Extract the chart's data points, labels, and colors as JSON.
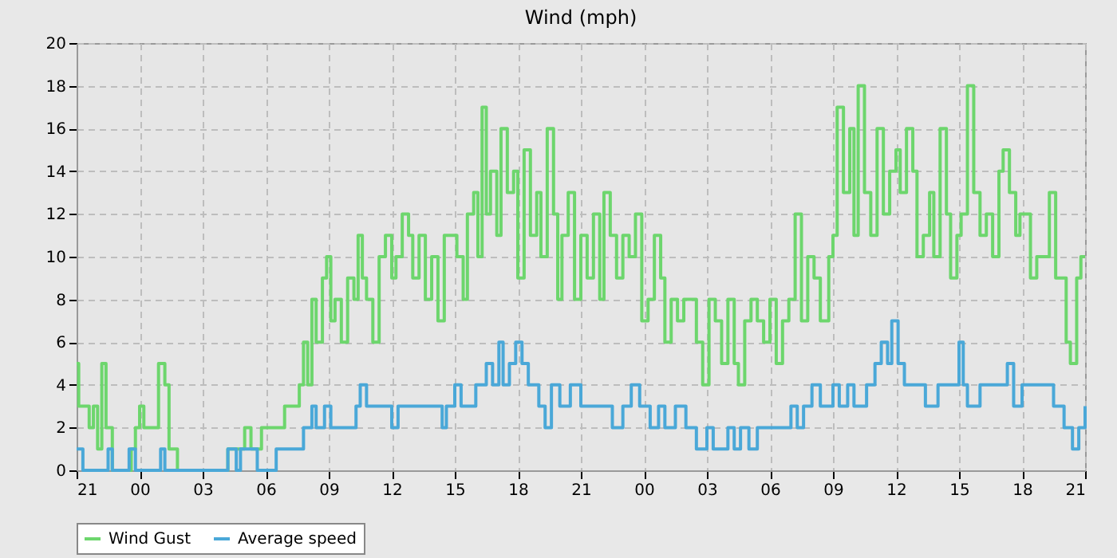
{
  "chart_data": {
    "type": "step",
    "title": "Wind (mph)",
    "legend": "bottom",
    "grid": true,
    "xlim": [
      "--01-01T21:00",
      "--01-03T21:00"
    ],
    "ylim": [
      0,
      20
    ],
    "xticks": [
      {
        "value": "--01-01T21:00",
        "label": "21"
      },
      {
        "value": "--01-02T00:00",
        "label": "00"
      },
      {
        "value": "--01-02T03:00",
        "label": "03"
      },
      {
        "value": "--01-02T06:00",
        "label": "06"
      },
      {
        "value": "--01-02T09:00",
        "label": "09"
      },
      {
        "value": "--01-02T12:00",
        "label": "12"
      },
      {
        "value": "--01-02T15:00",
        "label": "15"
      },
      {
        "value": "--01-02T18:00",
        "label": "18"
      },
      {
        "value": "--01-02T21:00",
        "label": "21"
      },
      {
        "value": "--01-03T00:00",
        "label": "00"
      },
      {
        "value": "--01-03T03:00",
        "label": "03"
      },
      {
        "value": "--01-03T06:00",
        "label": "06"
      },
      {
        "value": "--01-03T09:00",
        "label": "09"
      },
      {
        "value": "--01-03T12:00",
        "label": "12"
      },
      {
        "value": "--01-03T15:00",
        "label": "15"
      },
      {
        "value": "--01-03T18:00",
        "label": "18"
      },
      {
        "value": "--01-03T21:00",
        "label": "21"
      }
    ],
    "yticks": [
      0,
      2,
      4,
      6,
      8,
      10,
      12,
      14,
      16,
      18,
      20
    ],
    "series": [
      {
        "name": "Wind Gust",
        "color": "#6dd66d",
        "x": [
          "--01-01T21:00",
          "--01-01T21:06",
          "--01-01T21:36",
          "--01-01T21:48",
          "--01-01T22:00",
          "--01-01T22:12",
          "--01-01T22:24",
          "--01-01T22:42",
          "--01-01T23:36",
          "--01-01T23:48",
          "--01-02T00:00",
          "--01-02T00:12",
          "--01-02T00:54",
          "--01-02T01:12",
          "--01-02T01:24",
          "--01-02T01:48",
          "--01-02T04:12",
          "--01-02T05:00",
          "--01-02T05:18",
          "--01-02T05:48",
          "--01-02T06:54",
          "--01-02T07:36",
          "--01-02T07:48",
          "--01-02T08:00",
          "--01-02T08:12",
          "--01-02T08:24",
          "--01-02T08:42",
          "--01-02T08:54",
          "--01-02T09:06",
          "--01-02T09:18",
          "--01-02T09:36",
          "--01-02T09:54",
          "--01-02T10:12",
          "--01-02T10:24",
          "--01-02T10:36",
          "--01-02T10:48",
          "--01-02T11:06",
          "--01-02T11:24",
          "--01-02T11:42",
          "--01-02T12:00",
          "--01-02T12:12",
          "--01-02T12:30",
          "--01-02T12:48",
          "--01-02T13:00",
          "--01-02T13:18",
          "--01-02T13:36",
          "--01-02T13:54",
          "--01-02T14:12",
          "--01-02T14:30",
          "--01-02T14:48",
          "--01-02T15:06",
          "--01-02T15:24",
          "--01-02T15:36",
          "--01-02T15:54",
          "--01-02T16:06",
          "--01-02T16:18",
          "--01-02T16:30",
          "--01-02T16:42",
          "--01-02T17:00",
          "--01-02T17:12",
          "--01-02T17:30",
          "--01-02T17:48",
          "--01-02T18:00",
          "--01-02T18:18",
          "--01-02T18:36",
          "--01-02T18:54",
          "--01-02T19:06",
          "--01-02T19:24",
          "--01-02T19:42",
          "--01-02T19:54",
          "--01-02T20:06",
          "--01-02T20:24",
          "--01-02T20:42",
          "--01-02T21:00",
          "--01-02T21:18",
          "--01-02T21:36",
          "--01-02T21:54",
          "--01-02T22:06",
          "--01-02T22:24",
          "--01-02T22:42",
          "--01-02T23:00",
          "--01-02T23:18",
          "--01-02T23:36",
          "--01-02T23:54",
          "--01-03T00:12",
          "--01-03T00:30",
          "--01-03T00:48",
          "--01-03T01:00",
          "--01-03T01:18",
          "--01-03T01:36",
          "--01-03T01:54",
          "--01-03T02:12",
          "--01-03T02:30",
          "--01-03T02:48",
          "--01-03T03:06",
          "--01-03T03:24",
          "--01-03T03:42",
          "--01-03T04:00",
          "--01-03T04:18",
          "--01-03T04:30",
          "--01-03T04:48",
          "--01-03T05:06",
          "--01-03T05:24",
          "--01-03T05:42",
          "--01-03T06:00",
          "--01-03T06:18",
          "--01-03T06:36",
          "--01-03T06:54",
          "--01-03T07:12",
          "--01-03T07:30",
          "--01-03T07:48",
          "--01-03T08:06",
          "--01-03T08:24",
          "--01-03T08:48",
          "--01-03T09:00",
          "--01-03T09:12",
          "--01-03T09:30",
          "--01-03T09:48",
          "--01-03T10:00",
          "--01-03T10:12",
          "--01-03T10:30",
          "--01-03T10:48",
          "--01-03T11:06",
          "--01-03T11:24",
          "--01-03T11:42",
          "--01-03T12:00",
          "--01-03T12:12",
          "--01-03T12:30",
          "--01-03T12:48",
          "--01-03T13:00",
          "--01-03T13:18",
          "--01-03T13:36",
          "--01-03T13:48",
          "--01-03T14:06",
          "--01-03T14:24",
          "--01-03T14:36",
          "--01-03T14:54",
          "--01-03T15:06",
          "--01-03T15:24",
          "--01-03T15:42",
          "--01-03T16:00",
          "--01-03T16:18",
          "--01-03T16:36",
          "--01-03T16:54",
          "--01-03T17:06",
          "--01-03T17:24",
          "--01-03T17:42",
          "--01-03T17:54",
          "--01-03T18:24",
          "--01-03T18:42",
          "--01-03T19:18",
          "--01-03T19:36",
          "--01-03T19:54",
          "--01-03T20:06",
          "--01-03T20:18",
          "--01-03T20:36",
          "--01-03T20:48",
          "--01-03T21:00"
        ],
        "values": [
          5,
          3,
          2,
          3,
          1,
          5,
          2,
          0,
          1,
          2,
          3,
          2,
          5,
          4,
          1,
          0,
          1,
          2,
          1,
          2,
          3,
          4,
          6,
          4,
          8,
          6,
          9,
          10,
          7,
          8,
          6,
          9,
          8,
          11,
          9,
          8,
          6,
          10,
          11,
          9,
          10,
          12,
          11,
          9,
          11,
          8,
          10,
          7,
          11,
          11,
          10,
          8,
          12,
          13,
          10,
          17,
          12,
          14,
          11,
          16,
          13,
          14,
          9,
          15,
          11,
          13,
          10,
          16,
          12,
          8,
          11,
          13,
          8,
          11,
          9,
          12,
          8,
          13,
          11,
          9,
          11,
          10,
          12,
          7,
          8,
          11,
          9,
          6,
          8,
          7,
          8,
          8,
          6,
          4,
          8,
          7,
          5,
          8,
          5,
          4,
          7,
          8,
          7,
          6,
          8,
          5,
          7,
          8,
          12,
          7,
          10,
          9,
          7,
          10,
          11,
          17,
          13,
          16,
          11,
          18,
          13,
          11,
          16,
          12,
          14,
          15,
          13,
          16,
          14,
          10,
          11,
          13,
          10,
          16,
          12,
          9,
          11,
          12,
          18,
          13,
          11,
          12,
          10,
          14,
          15,
          13,
          11,
          12,
          9,
          10,
          13,
          9,
          9,
          6,
          5,
          9,
          10,
          10
        ]
      },
      {
        "name": "Average speed",
        "color": "#4aa8d8",
        "x": [
          "--01-01T21:00",
          "--01-01T21:18",
          "--01-01T22:30",
          "--01-01T22:42",
          "--01-01T23:30",
          "--01-01T23:48",
          "--01-02T01:00",
          "--01-02T01:12",
          "--01-02T04:12",
          "--01-02T04:36",
          "--01-02T04:48",
          "--01-02T05:36",
          "--01-02T06:30",
          "--01-02T07:48",
          "--01-02T08:12",
          "--01-02T08:24",
          "--01-02T08:48",
          "--01-02T09:06",
          "--01-02T10:18",
          "--01-02T10:30",
          "--01-02T10:48",
          "--01-02T12:00",
          "--01-02T12:18",
          "--01-02T14:24",
          "--01-02T14:36",
          "--01-02T15:00",
          "--01-02T15:18",
          "--01-02T16:00",
          "--01-02T16:30",
          "--01-02T16:48",
          "--01-02T17:06",
          "--01-02T17:18",
          "--01-02T17:36",
          "--01-02T17:54",
          "--01-02T18:12",
          "--01-02T18:30",
          "--01-02T19:00",
          "--01-02T19:18",
          "--01-02T19:36",
          "--01-02T20:00",
          "--01-02T20:30",
          "--01-02T21:00",
          "--01-02T22:30",
          "--01-02T23:00",
          "--01-02T23:24",
          "--01-02T23:48",
          "--01-03T00:18",
          "--01-03T00:42",
          "--01-03T01:00",
          "--01-03T01:30",
          "--01-03T02:00",
          "--01-03T02:30",
          "--01-03T03:00",
          "--01-03T03:18",
          "--01-03T04:00",
          "--01-03T04:18",
          "--01-03T04:36",
          "--01-03T05:00",
          "--01-03T05:24",
          "--01-03T07:00",
          "--01-03T07:18",
          "--01-03T07:36",
          "--01-03T08:00",
          "--01-03T08:24",
          "--01-03T09:00",
          "--01-03T09:18",
          "--01-03T09:42",
          "--01-03T10:00",
          "--01-03T10:36",
          "--01-03T11:00",
          "--01-03T11:18",
          "--01-03T11:36",
          "--01-03T11:48",
          "--01-03T12:06",
          "--01-03T12:24",
          "--01-03T13:24",
          "--01-03T14:00",
          "--01-03T14:36",
          "--01-03T15:00",
          "--01-03T15:12",
          "--01-03T15:24",
          "--01-03T16:00",
          "--01-03T17:18",
          "--01-03T17:36",
          "--01-03T18:00",
          "--01-03T19:30",
          "--01-03T20:00",
          "--01-03T20:24",
          "--01-03T20:42",
          "--01-03T21:00"
        ],
        "values": [
          1,
          0,
          1,
          0,
          1,
          0,
          1,
          0,
          1,
          0,
          1,
          0,
          1,
          2,
          3,
          2,
          3,
          2,
          3,
          4,
          3,
          2,
          3,
          2,
          3,
          4,
          3,
          4,
          5,
          4,
          6,
          4,
          5,
          6,
          5,
          4,
          3,
          2,
          4,
          3,
          4,
          3,
          2,
          3,
          4,
          3,
          2,
          3,
          2,
          3,
          2,
          1,
          2,
          1,
          2,
          1,
          2,
          1,
          2,
          3,
          2,
          3,
          4,
          3,
          4,
          3,
          4,
          3,
          4,
          5,
          6,
          5,
          7,
          5,
          4,
          3,
          4,
          4,
          6,
          4,
          3,
          4,
          5,
          3,
          4,
          3,
          2,
          1,
          2,
          3
        ]
      }
    ]
  }
}
